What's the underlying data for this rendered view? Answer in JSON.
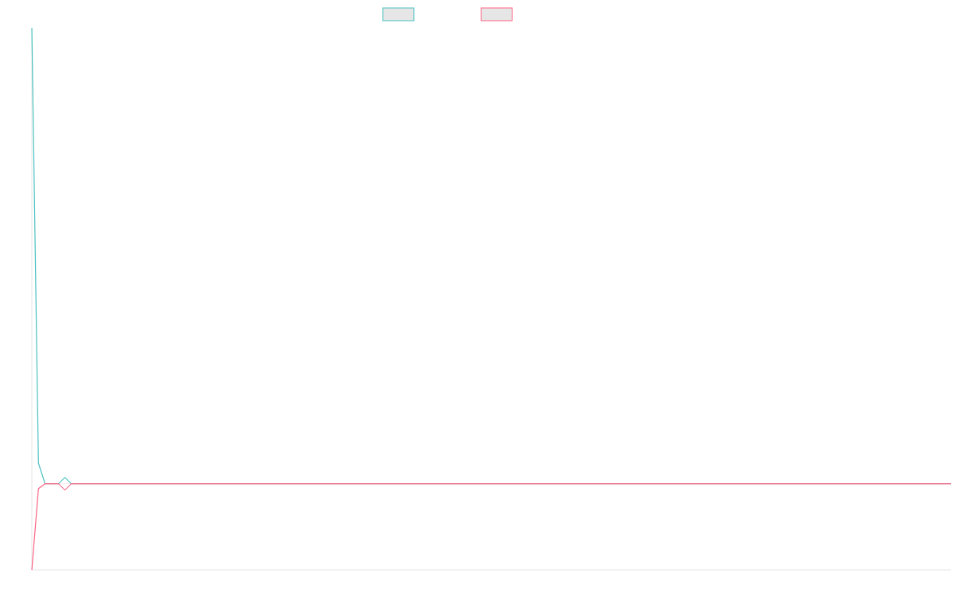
{
  "chart_data": {
    "type": "line",
    "x": [
      0,
      1,
      2,
      3,
      4,
      5,
      139
    ],
    "xlim": [
      0,
      139
    ],
    "ylim": [
      0,
      100
    ],
    "series": [
      {
        "color": "#4bc0c0",
        "values": [
          100,
          19.7,
          15.9,
          15.9,
          15.9,
          15.9,
          15.9
        ]
      },
      {
        "color": "#ff6384",
        "values": [
          0,
          15,
          15.9,
          15.9,
          15.9,
          15.9,
          15.9
        ]
      }
    ],
    "active_index": 5
  }
}
